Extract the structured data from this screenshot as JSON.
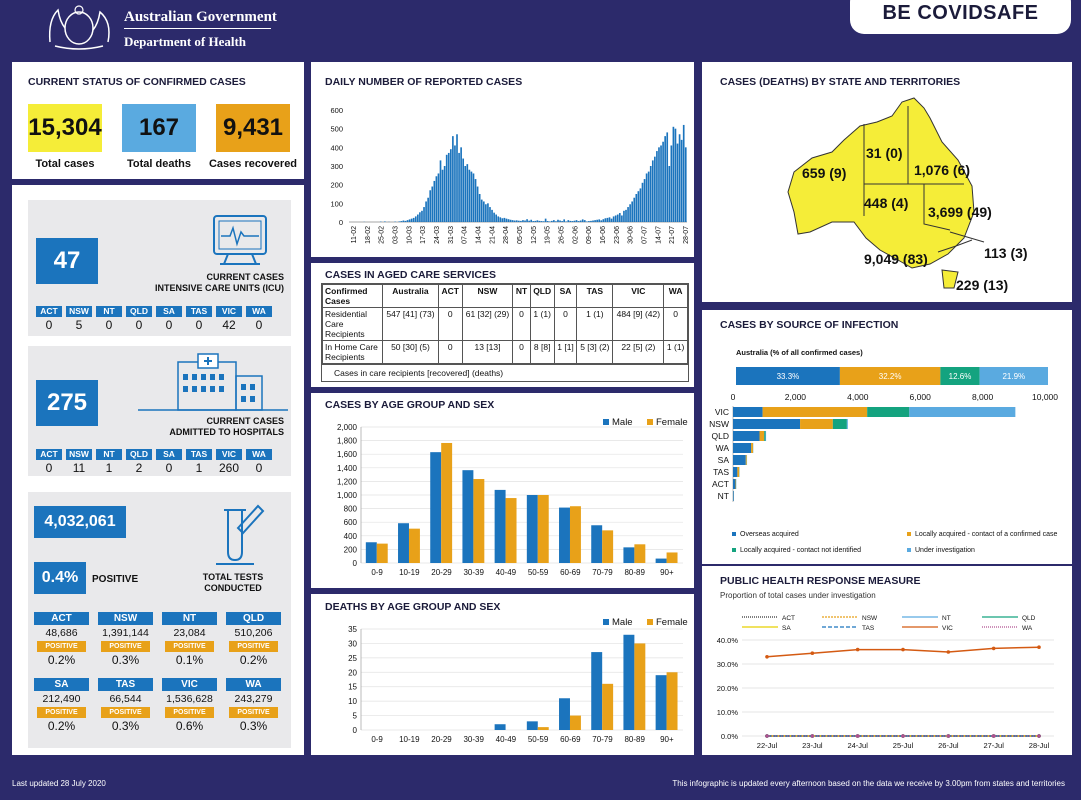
{
  "header": {
    "gov_line1": "Australian Government",
    "gov_line2": "Department of Health",
    "covidsafe_be": "BE COVID",
    "covidsafe_safe": "SAFE"
  },
  "status": {
    "title": "CURRENT STATUS OF CONFIRMED CASES",
    "total_cases": "15,304",
    "total_cases_label": "Total cases",
    "total_deaths": "167",
    "total_deaths_label": "Total deaths",
    "recovered": "9,431",
    "recovered_label": "Cases recovered"
  },
  "icu": {
    "value": "47",
    "label1": "CURRENT CASES",
    "label2": "INTENSIVE CARE UNITS (ICU)",
    "states": [
      "ACT",
      "NSW",
      "NT",
      "QLD",
      "SA",
      "TAS",
      "VIC",
      "WA"
    ],
    "values": [
      "0",
      "5",
      "0",
      "0",
      "0",
      "0",
      "42",
      "0"
    ]
  },
  "hosp": {
    "value": "275",
    "label1": "CURRENT CASES",
    "label2": "ADMITTED TO HOSPITALS",
    "states": [
      "ACT",
      "NSW",
      "NT",
      "QLD",
      "SA",
      "TAS",
      "VIC",
      "WA"
    ],
    "values": [
      "0",
      "11",
      "1",
      "2",
      "0",
      "1",
      "260",
      "0"
    ]
  },
  "tests": {
    "total": "4,032,061",
    "positive_pct": "0.4%",
    "positive_label": "POSITIVE",
    "label1": "TOTAL TESTS",
    "label2": "CONDUCTED",
    "positive_tag": "POSITIVE",
    "states": [
      {
        "state": "ACT",
        "tests": "48,686",
        "pct": "0.2%"
      },
      {
        "state": "NSW",
        "tests": "1,391,144",
        "pct": "0.3%"
      },
      {
        "state": "NT",
        "tests": "23,084",
        "pct": "0.1%"
      },
      {
        "state": "QLD",
        "tests": "510,206",
        "pct": "0.2%"
      },
      {
        "state": "SA",
        "tests": "212,490",
        "pct": "0.2%"
      },
      {
        "state": "TAS",
        "tests": "66,544",
        "pct": "0.3%"
      },
      {
        "state": "VIC",
        "tests": "1,536,628",
        "pct": "0.6%"
      },
      {
        "state": "WA",
        "tests": "243,279",
        "pct": "0.3%"
      }
    ]
  },
  "aged_care": {
    "title": "CASES IN AGED CARE SERVICES",
    "headers": [
      "Confirmed Cases",
      "Australia",
      "ACT",
      "NSW",
      "NT",
      "QLD",
      "SA",
      "TAS",
      "VIC",
      "WA"
    ],
    "rows": [
      [
        "Residential Care Recipients",
        "547 [41] (73)",
        "0",
        "61 [32] (29)",
        "0",
        "1 (1)",
        "0",
        "1 (1)",
        "484 [9] (42)",
        "0"
      ],
      [
        "In Home Care Recipients",
        "50 [30] (5)",
        "0",
        "13 [13]",
        "0",
        "8 [8]",
        "1 [1]",
        "5 [3] (2)",
        "22 [5] (2)",
        "1 (1)"
      ]
    ],
    "footnote": "Cases in care recipients [recovered] (deaths)"
  },
  "map": {
    "title": "CASES (DEATHS) BY STATE AND TERRITORIES",
    "labels": {
      "WA": "659 (9)",
      "NT": "31 (0)",
      "QLD": "1,076 (6)",
      "SA": "448 (4)",
      "NSW": "3,699 (49)",
      "ACT": "113 (3)",
      "VIC": "9,049 (83)",
      "TAS": "229 (13)"
    }
  },
  "source": {
    "title": "CASES BY SOURCE OF INFECTION",
    "subtitle": "Australia (% of all confirmed cases)"
  },
  "phrm": {
    "title": "PUBLIC HEALTH RESPONSE MEASURE",
    "subtitle": "Proportion of total cases under investigation"
  },
  "footer": {
    "left": "Last updated 28 July 2020",
    "right": "This infographic is updated every afternoon based on the data we receive by 3.00pm from states and territories"
  },
  "chart_data": [
    {
      "id": "daily",
      "type": "bar",
      "title": "DAILY NUMBER OF REPORTED CASES",
      "ylim": [
        0,
        600
      ],
      "yticks": [
        0,
        100,
        200,
        300,
        400,
        500,
        600
      ],
      "xticks": [
        "11-02",
        "18-02",
        "25-02",
        "03-03",
        "10-03",
        "17-03",
        "24-03",
        "31-03",
        "07-04",
        "14-04",
        "21-04",
        "28-04",
        "05-05",
        "12-05",
        "19-05",
        "26-05",
        "02-06",
        "09-06",
        "16-06",
        "23-06",
        "30-06",
        "07-07",
        "14-07",
        "21-07",
        "28-07"
      ],
      "values": [
        0,
        0,
        0,
        0,
        0,
        0,
        0,
        1,
        0,
        0,
        0,
        0,
        0,
        0,
        0,
        2,
        0,
        3,
        0,
        1,
        0,
        0,
        2,
        0,
        3,
        5,
        8,
        6,
        10,
        14,
        18,
        22,
        30,
        40,
        52,
        60,
        80,
        110,
        130,
        170,
        190,
        220,
        245,
        260,
        330,
        280,
        300,
        360,
        370,
        390,
        460,
        410,
        470,
        370,
        400,
        340,
        300,
        310,
        280,
        270,
        260,
        230,
        190,
        150,
        120,
        110,
        95,
        100,
        80,
        65,
        50,
        40,
        30,
        25,
        20,
        22,
        18,
        15,
        12,
        10,
        8,
        9,
        7,
        6,
        10,
        8,
        15,
        7,
        12,
        5,
        6,
        9,
        6,
        5,
        4,
        18,
        5,
        3,
        6,
        10,
        4,
        12,
        8,
        5,
        14,
        3,
        10,
        6,
        5,
        7,
        10,
        5,
        8,
        14,
        10,
        3,
        5,
        6,
        8,
        10,
        12,
        14,
        9,
        15,
        20,
        22,
        25,
        18,
        30,
        35,
        40,
        48,
        35,
        60,
        65,
        80,
        95,
        110,
        130,
        150,
        165,
        180,
        210,
        230,
        260,
        270,
        300,
        330,
        350,
        380,
        400,
        410,
        430,
        460,
        480,
        300,
        410,
        510,
        500,
        420,
        470,
        440,
        520,
        400
      ]
    },
    {
      "id": "age",
      "type": "bar",
      "title": "CASES BY AGE GROUP AND SEX",
      "categories": [
        "0-9",
        "10-19",
        "20-29",
        "30-39",
        "40-49",
        "50-59",
        "60-69",
        "70-79",
        "80-89",
        "90+"
      ],
      "ylim": [
        0,
        2000
      ],
      "yticks": [
        0,
        200,
        400,
        600,
        800,
        1000,
        1200,
        1400,
        1600,
        1800,
        2000
      ],
      "yticklabels": [
        "0",
        "200",
        "400",
        "600",
        "800",
        "1,000",
        "1,200",
        "1,400",
        "1,600",
        "1,800",
        "2,000"
      ],
      "series": [
        {
          "name": "Male",
          "color": "#1b74bd",
          "values": [
            305,
            585,
            1630,
            1365,
            1075,
            1000,
            815,
            555,
            230,
            65
          ]
        },
        {
          "name": "Female",
          "color": "#e8a119",
          "values": [
            285,
            505,
            1765,
            1235,
            955,
            1000,
            835,
            480,
            275,
            155
          ]
        }
      ]
    },
    {
      "id": "deaths",
      "type": "bar",
      "title": "DEATHS BY AGE GROUP AND SEX",
      "categories": [
        "0-9",
        "10-19",
        "20-29",
        "30-39",
        "40-49",
        "50-59",
        "60-69",
        "70-79",
        "80-89",
        "90+"
      ],
      "ylim": [
        0,
        35
      ],
      "yticks": [
        0,
        5,
        10,
        15,
        20,
        25,
        30,
        35
      ],
      "yticklabels": [
        "0",
        "5",
        "10",
        "15",
        "20",
        "25",
        "30",
        "35"
      ],
      "series": [
        {
          "name": "Male",
          "color": "#1b74bd",
          "values": [
            0,
            0,
            0,
            0,
            2,
            3,
            11,
            27,
            33,
            19
          ]
        },
        {
          "name": "Female",
          "color": "#e8a119",
          "values": [
            0,
            0,
            0,
            0,
            0,
            1,
            5,
            16,
            30,
            20
          ]
        }
      ]
    },
    {
      "id": "source",
      "type": "bar",
      "orientation": "horizontal-stacked",
      "xlim": [
        0,
        10000
      ],
      "xticks": [
        0,
        2000,
        4000,
        6000,
        8000,
        10000
      ],
      "xticklabels": [
        "0",
        "2,000",
        "4,000",
        "6,000",
        "8,000",
        "10,000"
      ],
      "australia_pct": [
        33.3,
        32.2,
        12.6,
        21.9
      ],
      "australia_labels": [
        "33.3%",
        "32.2%",
        "12.6%",
        "21.9%"
      ],
      "categories": [
        "VIC",
        "NSW",
        "QLD",
        "WA",
        "SA",
        "TAS",
        "ACT",
        "NT"
      ],
      "series": [
        {
          "name": "Overseas acquired",
          "color": "#1b74bd",
          "values": [
            950,
            2150,
            850,
            580,
            410,
            140,
            80,
            25
          ]
        },
        {
          "name": "Locally acquired - contact of a confirmed case",
          "color": "#e8a119",
          "values": [
            3350,
            1050,
            150,
            60,
            30,
            60,
            15,
            3
          ]
        },
        {
          "name": "Locally acquired - contact not identified",
          "color": "#14a37f",
          "values": [
            1350,
            450,
            40,
            5,
            5,
            5,
            5,
            1
          ]
        },
        {
          "name": "Under investigation",
          "color": "#5aaae0",
          "values": [
            3400,
            30,
            20,
            5,
            5,
            5,
            5,
            1
          ]
        }
      ]
    },
    {
      "id": "phrm",
      "type": "line",
      "ylim": [
        0,
        40
      ],
      "yticks": [
        0,
        10,
        20,
        30,
        40
      ],
      "yticklabels": [
        "0.0%",
        "10.0%",
        "20.0%",
        "30.0%",
        "40.0%"
      ],
      "x": [
        "22-Jul",
        "23-Jul",
        "24-Jul",
        "25-Jul",
        "26-Jul",
        "27-Jul",
        "28-Jul"
      ],
      "series": [
        {
          "name": "ACT",
          "color": "#333",
          "dash": "1,1",
          "values": [
            0,
            0,
            0,
            0,
            0,
            0,
            0
          ]
        },
        {
          "name": "NSW",
          "color": "#e8a119",
          "dash": "2,1",
          "values": [
            0,
            0,
            0,
            0,
            0,
            0,
            0
          ]
        },
        {
          "name": "NT",
          "color": "#5aaae0",
          "dash": "",
          "values": [
            0,
            0,
            0,
            0,
            0,
            0,
            0
          ]
        },
        {
          "name": "QLD",
          "color": "#14a37f",
          "dash": "",
          "values": [
            0,
            0,
            0,
            0,
            0,
            0,
            0
          ]
        },
        {
          "name": "SA",
          "color": "#e8d000",
          "dash": "",
          "values": [
            0,
            0,
            0,
            0,
            0,
            0,
            0
          ]
        },
        {
          "name": "TAS",
          "color": "#1b74bd",
          "dash": "4,2",
          "values": [
            0,
            0,
            0,
            0,
            0,
            0,
            0
          ]
        },
        {
          "name": "VIC",
          "color": "#d45a12",
          "dash": "",
          "values": [
            33,
            34.5,
            36,
            36,
            35,
            36.5,
            37
          ]
        },
        {
          "name": "WA",
          "color": "#b05090",
          "dash": "1,1",
          "values": [
            0,
            0,
            0,
            0,
            0,
            0,
            0
          ]
        }
      ]
    }
  ]
}
